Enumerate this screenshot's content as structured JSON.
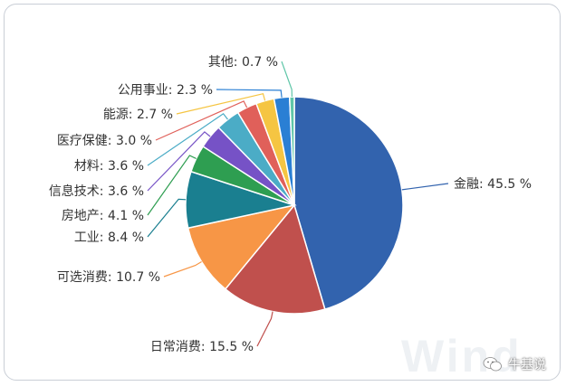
{
  "chart_data": {
    "type": "pie",
    "title": "",
    "slices": [
      {
        "label": "金融",
        "value": 45.5,
        "text": "金融: 45.5 %",
        "color": "#3263ae"
      },
      {
        "label": "日常消费",
        "value": 15.5,
        "text": "日常消费: 15.5 %",
        "color": "#c0504d"
      },
      {
        "label": "可选消费",
        "value": 10.7,
        "text": "可选消费: 10.7 %",
        "color": "#f79646"
      },
      {
        "label": "工业",
        "value": 8.4,
        "text": "工业: 8.4 %",
        "color": "#1a7f90"
      },
      {
        "label": "房地产",
        "value": 4.1,
        "text": "房地产: 4.1 %",
        "color": "#2e9e51"
      },
      {
        "label": "信息技术",
        "value": 3.6,
        "text": "信息技术: 3.6 %",
        "color": "#7652c6"
      },
      {
        "label": "材料",
        "value": 3.6,
        "text": "材料: 3.6 %",
        "color": "#4bacc6"
      },
      {
        "label": "医疗保健",
        "value": 3.0,
        "text": "医疗保健: 3.0 %",
        "color": "#e0605a"
      },
      {
        "label": "能源",
        "value": 2.7,
        "text": "能源: 2.7 %",
        "color": "#f5c542"
      },
      {
        "label": "公用事业",
        "value": 2.3,
        "text": "公用事业: 2.3 %",
        "color": "#2a7fd4"
      },
      {
        "label": "其他",
        "value": 0.7,
        "text": "其他: 0.7 %",
        "color": "#5fc6a8"
      }
    ]
  },
  "watermark": "Wind",
  "credit": "牛基说"
}
